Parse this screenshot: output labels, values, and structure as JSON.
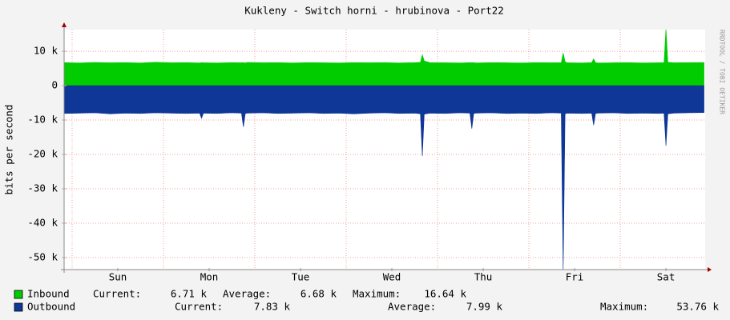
{
  "chart_data": {
    "type": "area",
    "title": "Kukleny - Switch horni - hrubinova - Port22",
    "y_label": "bits per second",
    "watermark": "RRDTOOL / TOBI OETIKER",
    "x": [
      -2,
      2,
      6,
      10,
      14,
      18,
      22,
      26,
      30,
      33.5,
      34,
      34.5,
      38,
      42,
      44.5,
      45,
      45.5,
      46,
      50,
      54,
      58,
      62,
      66,
      70,
      74,
      78,
      82,
      86,
      90,
      91.5,
      92,
      92.5,
      94,
      98,
      102,
      104.5,
      105,
      105.5,
      106,
      110,
      114,
      118,
      122,
      126,
      128.5,
      129,
      129.5,
      130,
      134,
      136.5,
      137,
      137.5,
      138,
      142,
      146,
      150,
      154,
      155.5,
      156,
      156.5,
      158,
      162,
      166
    ],
    "xlim": [
      -2.1,
      166.3
    ],
    "xticks": [
      {
        "value": 12,
        "label": "Sun"
      },
      {
        "value": 36,
        "label": "Mon"
      },
      {
        "value": 60,
        "label": "Tue"
      },
      {
        "value": 84,
        "label": "Wed"
      },
      {
        "value": 108,
        "label": "Thu"
      },
      {
        "value": 132,
        "label": "Fri"
      },
      {
        "value": 156,
        "label": "Sat"
      }
    ],
    "xgrid": [
      0,
      24,
      48,
      72,
      96,
      120,
      144
    ],
    "ylim": [
      -53500,
      16300
    ],
    "yticks": [
      {
        "value": 10000,
        "label": "10 k"
      },
      0,
      {
        "value": -10000,
        "label": "-10 k"
      },
      {
        "value": -20000,
        "label": "-20 k"
      },
      {
        "value": -30000,
        "label": "-30 k"
      },
      {
        "value": -40000,
        "label": "-40 k"
      },
      {
        "value": -50000,
        "label": "-50 k"
      }
    ],
    "grid": true,
    "series": [
      {
        "name": "Inbound",
        "color": "#00cc00",
        "values": [
          6700,
          6600,
          6750,
          6650,
          6700,
          6600,
          6800,
          6650,
          6700,
          6600,
          6700,
          6650,
          6600,
          6700,
          6650,
          6700,
          6600,
          6750,
          6650,
          6700,
          6600,
          6700,
          6650,
          6600,
          6700,
          6650,
          6700,
          6600,
          6700,
          6800,
          9000,
          7200,
          6700,
          6650,
          6600,
          6700,
          6650,
          6700,
          6600,
          6700,
          6650,
          6600,
          6700,
          6650,
          6700,
          9500,
          7000,
          6650,
          6600,
          6700,
          7800,
          6700,
          6600,
          6650,
          6700,
          6600,
          6650,
          6700,
          16640,
          6800,
          6650,
          6700,
          6710
        ],
        "stats": [
          {
            "label": "Current:",
            "value": "6.71 k"
          },
          {
            "label": "Average:",
            "value": "6.68 k"
          },
          {
            "label": "Maximum:",
            "value": "16.64 k"
          }
        ]
      },
      {
        "name": "Outbound",
        "color": "#0f3797",
        "values": [
          -8100,
          -8000,
          -7900,
          -8200,
          -8000,
          -8100,
          -7900,
          -8000,
          -8100,
          -8000,
          -9500,
          -8000,
          -8100,
          -7900,
          -8000,
          -12000,
          -8100,
          -8000,
          -7900,
          -8100,
          -8000,
          -7900,
          -8100,
          -8000,
          -8200,
          -8000,
          -7900,
          -8100,
          -8000,
          -8200,
          -20500,
          -8300,
          -8000,
          -8100,
          -7900,
          -8000,
          -12500,
          -8100,
          -8000,
          -7900,
          -8100,
          -8000,
          -8100,
          -7900,
          -8000,
          -53760,
          -8200,
          -8000,
          -8100,
          -8000,
          -11500,
          -8100,
          -8000,
          -7900,
          -8100,
          -8000,
          -8100,
          -8000,
          -17500,
          -8200,
          -8000,
          -7900,
          -7830
        ],
        "stats": [
          {
            "label": "Current:",
            "value": "7.83 k"
          },
          {
            "label": "Average:",
            "value": "7.99 k"
          },
          {
            "label": "Maximum:",
            "value": "53.76 k"
          }
        ]
      }
    ]
  }
}
